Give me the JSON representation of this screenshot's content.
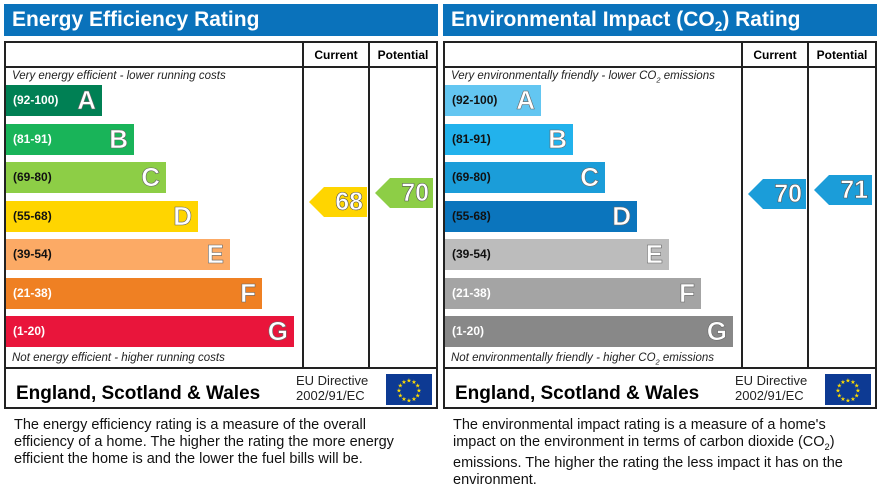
{
  "chart_data": [
    {
      "type": "bar",
      "title": "Energy Efficiency Rating",
      "top_caption": "Very energy efficient - lower running costs",
      "bottom_caption": "Not energy efficient - higher running costs",
      "columns": [
        "Current",
        "Potential"
      ],
      "bands": [
        {
          "letter": "A",
          "range": "(92-100)",
          "color": "#008054"
        },
        {
          "letter": "B",
          "range": "(81-91)",
          "color": "#19b459"
        },
        {
          "letter": "C",
          "range": "(69-80)",
          "color": "#8dce46"
        },
        {
          "letter": "D",
          "range": "(55-68)",
          "color": "#ffd500"
        },
        {
          "letter": "E",
          "range": "(39-54)",
          "color": "#fcaa65"
        },
        {
          "letter": "F",
          "range": "(21-38)",
          "color": "#ef8023"
        },
        {
          "letter": "G",
          "range": "(1-20)",
          "color": "#e9153b"
        }
      ],
      "current": {
        "value": "68",
        "band": "D",
        "color": "#ffd500"
      },
      "potential": {
        "value": "70",
        "band": "C",
        "color": "#8dce46"
      },
      "region": "England, Scotland & Wales",
      "directive": [
        "EU Directive",
        "2002/91/EC"
      ],
      "description": "The energy efficiency rating is a measure of the overall efficiency of a home. The higher the rating the more energy efficient the home is and the lower the fuel bills will be."
    },
    {
      "type": "bar",
      "title": "Environmental Impact (CO2) Rating",
      "top_caption": "Very environmentally friendly - lower CO2 emissions",
      "bottom_caption": "Not environmentally friendly - higher CO2 emissions",
      "columns": [
        "Current",
        "Potential"
      ],
      "bands": [
        {
          "letter": "A",
          "range": "(92-100)",
          "color": "#63c6f1"
        },
        {
          "letter": "B",
          "range": "(81-91)",
          "color": "#22b2ec"
        },
        {
          "letter": "C",
          "range": "(69-80)",
          "color": "#1b9dd9"
        },
        {
          "letter": "D",
          "range": "(55-68)",
          "color": "#0b75bd"
        },
        {
          "letter": "E",
          "range": "(39-54)",
          "color": "#bcbcbc"
        },
        {
          "letter": "F",
          "range": "(21-38)",
          "color": "#a4a4a4"
        },
        {
          "letter": "G",
          "range": "(1-20)",
          "color": "#888888"
        }
      ],
      "current": {
        "value": "70",
        "band": "C",
        "color": "#1b9dd9"
      },
      "potential": {
        "value": "71",
        "band": "C",
        "color": "#1b9dd9"
      },
      "region": "England, Scotland & Wales",
      "directive": [
        "EU Directive",
        "2002/91/EC"
      ],
      "description": "The environmental impact rating is a measure of a home's impact on the environment in terms of carbon dioxide (CO2) emissions. The higher the rating the less impact it has on the environment."
    }
  ]
}
